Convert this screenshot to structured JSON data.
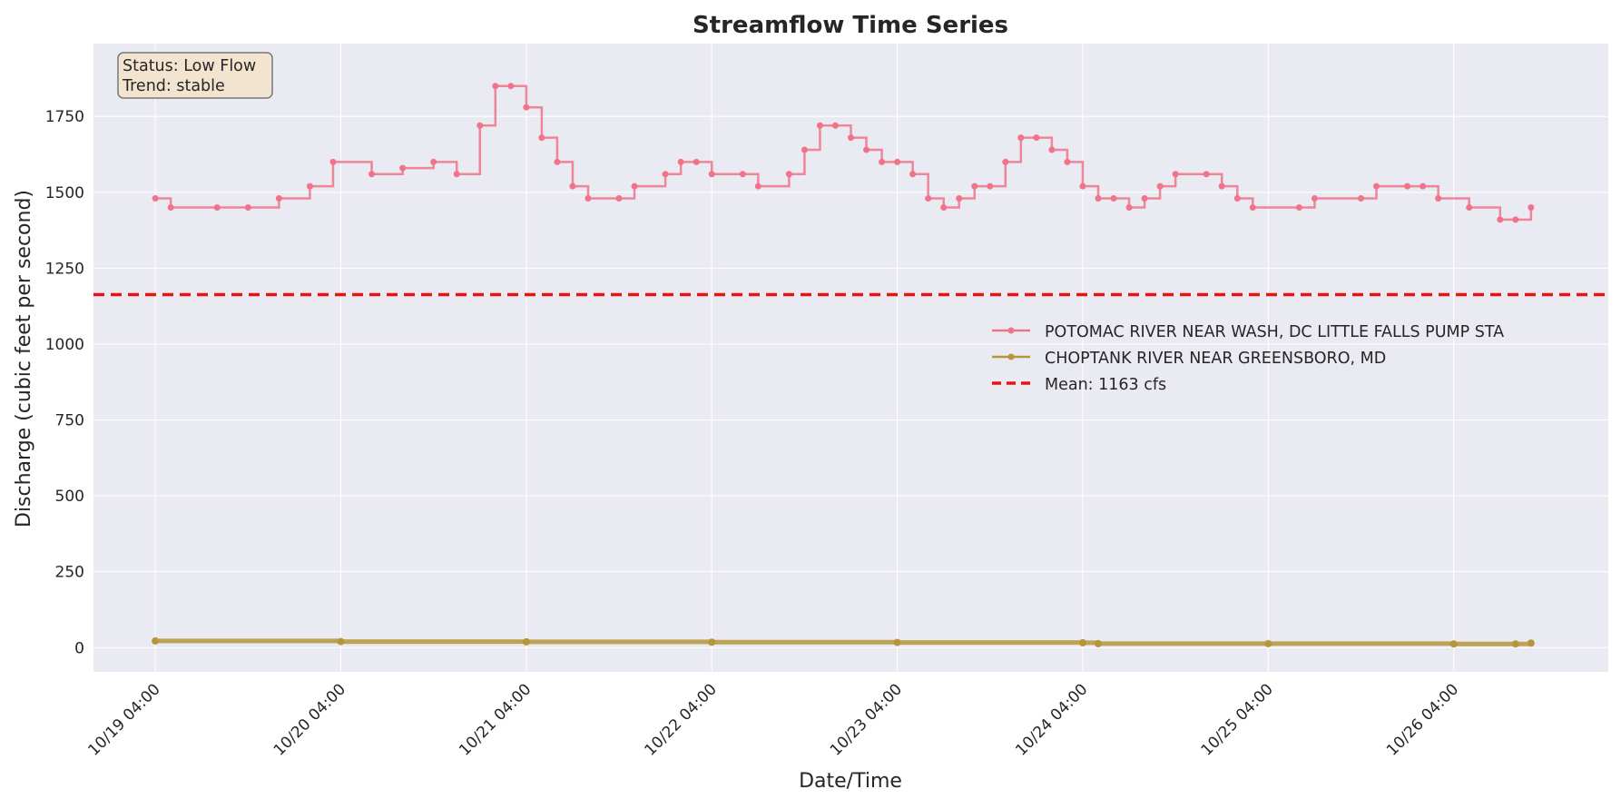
{
  "chart_data": {
    "type": "line",
    "title": "Streamflow Time Series",
    "xlabel": "Date/Time",
    "ylabel": "Discharge (cubic feet per second)",
    "ylim": [
      -80,
      1990
    ],
    "xlim": [
      "2023-10-18 20:00",
      "2023-10-27 00:00"
    ],
    "x_ticks": [
      "10/19 04:00",
      "10/20 04:00",
      "10/21 04:00",
      "10/22 04:00",
      "10/23 04:00",
      "10/24 04:00",
      "10/25 04:00",
      "10/26 04:00"
    ],
    "y_ticks": [
      0,
      250,
      500,
      750,
      1000,
      1250,
      1500,
      1750
    ],
    "grid": true,
    "legend_position": "center-right",
    "series": [
      {
        "name": "POTOMAC RIVER NEAR WASH, DC LITTLE FALLS PUMP STA",
        "color": "#f0738a",
        "marker": "circle",
        "points": [
          [
            "10/19 04:00",
            1480
          ],
          [
            "10/19 06:00",
            1450
          ],
          [
            "10/19 12:00",
            1450
          ],
          [
            "10/19 16:00",
            1450
          ],
          [
            "10/19 20:00",
            1480
          ],
          [
            "10/20 00:00",
            1520
          ],
          [
            "10/20 03:00",
            1600
          ],
          [
            "10/20 08:00",
            1560
          ],
          [
            "10/20 12:00",
            1580
          ],
          [
            "10/20 16:00",
            1600
          ],
          [
            "10/20 19:00",
            1560
          ],
          [
            "10/20 22:00",
            1720
          ],
          [
            "10/21 00:00",
            1850
          ],
          [
            "10/21 02:00",
            1850
          ],
          [
            "10/21 04:00",
            1780
          ],
          [
            "10/21 06:00",
            1680
          ],
          [
            "10/21 08:00",
            1600
          ],
          [
            "10/21 10:00",
            1520
          ],
          [
            "10/21 12:00",
            1480
          ],
          [
            "10/21 16:00",
            1480
          ],
          [
            "10/21 18:00",
            1520
          ],
          [
            "10/21 22:00",
            1560
          ],
          [
            "10/22 00:00",
            1600
          ],
          [
            "10/22 02:00",
            1600
          ],
          [
            "10/22 04:00",
            1560
          ],
          [
            "10/22 08:00",
            1560
          ],
          [
            "10/22 10:00",
            1520
          ],
          [
            "10/22 14:00",
            1560
          ],
          [
            "10/22 16:00",
            1640
          ],
          [
            "10/22 18:00",
            1720
          ],
          [
            "10/22 20:00",
            1720
          ],
          [
            "10/22 22:00",
            1680
          ],
          [
            "10/23 00:00",
            1640
          ],
          [
            "10/23 02:00",
            1600
          ],
          [
            "10/23 04:00",
            1600
          ],
          [
            "10/23 06:00",
            1560
          ],
          [
            "10/23 08:00",
            1480
          ],
          [
            "10/23 10:00",
            1450
          ],
          [
            "10/23 12:00",
            1480
          ],
          [
            "10/23 14:00",
            1520
          ],
          [
            "10/23 16:00",
            1520
          ],
          [
            "10/23 18:00",
            1600
          ],
          [
            "10/23 20:00",
            1680
          ],
          [
            "10/23 22:00",
            1680
          ],
          [
            "10/24 00:00",
            1640
          ],
          [
            "10/24 02:00",
            1600
          ],
          [
            "10/24 04:00",
            1520
          ],
          [
            "10/24 06:00",
            1480
          ],
          [
            "10/24 08:00",
            1480
          ],
          [
            "10/24 10:00",
            1450
          ],
          [
            "10/24 12:00",
            1480
          ],
          [
            "10/24 14:00",
            1520
          ],
          [
            "10/24 16:00",
            1560
          ],
          [
            "10/24 20:00",
            1560
          ],
          [
            "10/24 22:00",
            1520
          ],
          [
            "10/25 00:00",
            1480
          ],
          [
            "10/25 02:00",
            1450
          ],
          [
            "10/25 08:00",
            1450
          ],
          [
            "10/25 10:00",
            1480
          ],
          [
            "10/25 16:00",
            1480
          ],
          [
            "10/25 18:00",
            1520
          ],
          [
            "10/25 22:00",
            1520
          ],
          [
            "10/26 00:00",
            1520
          ],
          [
            "10/26 02:00",
            1480
          ],
          [
            "10/26 06:00",
            1450
          ],
          [
            "10/26 10:00",
            1410
          ],
          [
            "10/26 12:00",
            1410
          ],
          [
            "10/26 14:00",
            1450
          ]
        ]
      },
      {
        "name": "CHOPTANK RIVER NEAR GREENSBORO, MD",
        "color": "#b5963a",
        "marker": "circle",
        "points": [
          [
            "10/19 04:00",
            22
          ],
          [
            "10/20 04:00",
            20
          ],
          [
            "10/21 04:00",
            19
          ],
          [
            "10/22 04:00",
            18
          ],
          [
            "10/23 04:00",
            17
          ],
          [
            "10/24 04:00",
            16
          ],
          [
            "10/24 06:00",
            13
          ],
          [
            "10/25 04:00",
            13
          ],
          [
            "10/26 04:00",
            12
          ],
          [
            "10/26 12:00",
            12
          ],
          [
            "10/26 14:00",
            15
          ]
        ]
      }
    ],
    "mean_line": {
      "value": 1163,
      "label": "Mean: 1163 cfs",
      "color": "#ee1111"
    }
  },
  "status_box": {
    "status": "Status: Low Flow",
    "trend": "Trend: stable"
  }
}
